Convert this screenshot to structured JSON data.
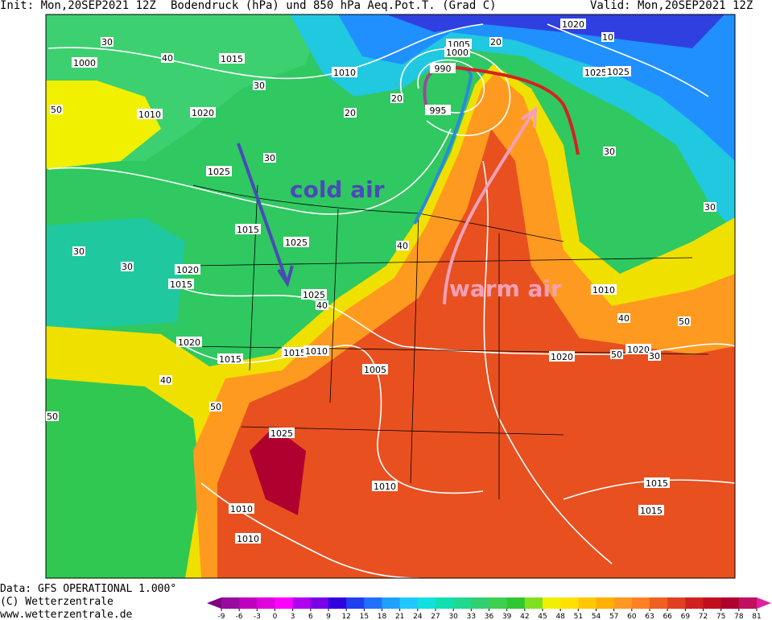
{
  "header": {
    "init": "Init: Mon,20SEP2021 12Z",
    "title": "Bodendruck (hPa) und 850 hPa Aeq.Pot.T. (Grad C)",
    "valid": "Valid: Mon,20SEP2021 12Z"
  },
  "annotations": {
    "cold": "cold air",
    "warm": "warm air"
  },
  "isobar_labels": [
    "1000",
    "1015",
    "1010",
    "1020",
    "1025",
    "1005",
    "1000",
    "990",
    "995",
    "1020",
    "1025",
    "1010",
    "1015",
    "1025",
    "1025",
    "1020",
    "1015",
    "1020",
    "1015",
    "1010",
    "1015",
    "1010",
    "1005",
    "1020",
    "1020",
    "1025",
    "1015",
    "1015",
    "1010",
    "1010",
    "1010",
    "1025"
  ],
  "theta_labels": [
    "30",
    "40",
    "30",
    "50",
    "20",
    "20",
    "30",
    "30",
    "30",
    "40",
    "40",
    "30",
    "30",
    "50",
    "50",
    "40",
    "40",
    "50",
    "50",
    "20",
    "10",
    "30"
  ],
  "footer": {
    "data": "Data: GFS OPERATIONAL 1.000°",
    "copyright": "(C) Wetterzentrale",
    "url": "www.wetterzentrale.de"
  },
  "colorbar": {
    "ticks": [
      -9,
      -6,
      -3,
      0,
      3,
      6,
      9,
      12,
      15,
      18,
      21,
      24,
      27,
      30,
      33,
      36,
      39,
      42,
      45,
      48,
      51,
      54,
      57,
      60,
      63,
      66,
      69,
      72,
      75,
      78,
      81
    ],
    "colors": [
      "#800080",
      "#9a0aa0",
      "#c000c0",
      "#e000e0",
      "#ff00ff",
      "#b000f0",
      "#7a00e6",
      "#3000e0",
      "#2040f0",
      "#2070ff",
      "#20a0ff",
      "#20c8ff",
      "#10e0e0",
      "#10e0b0",
      "#20d890",
      "#30d070",
      "#40d050",
      "#30c830",
      "#80e020",
      "#f0f000",
      "#ffe000",
      "#ffc800",
      "#ffb000",
      "#ff9820",
      "#ff8020",
      "#f06020",
      "#e04020",
      "#d02020",
      "#c01020",
      "#b00030",
      "#c01060",
      "#e020a0"
    ]
  }
}
